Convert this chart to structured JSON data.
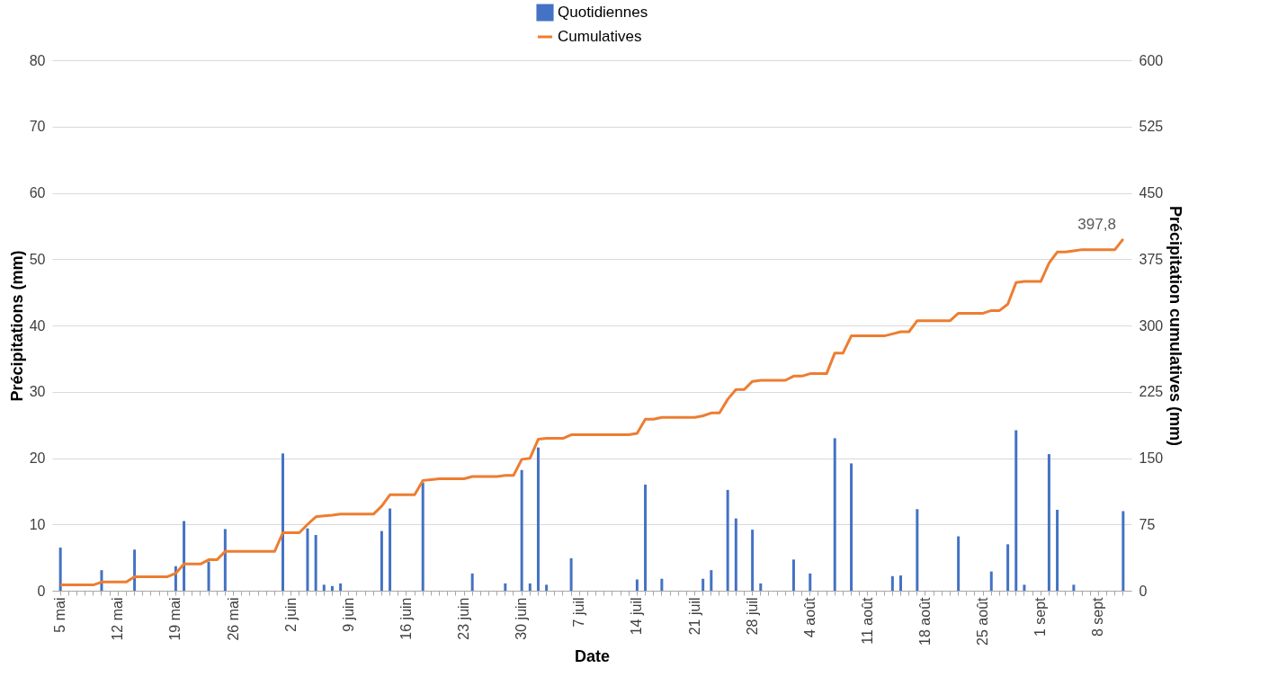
{
  "chart_data": {
    "type": "bar",
    "xlabel": "Date",
    "ylabel": "Précipitations (mm)",
    "y2label": "Précipitation cumulatives (mm)",
    "categories": [
      "5 mai",
      null,
      null,
      null,
      null,
      null,
      null,
      "12 mai",
      null,
      null,
      null,
      null,
      null,
      null,
      "19 mai",
      null,
      null,
      null,
      null,
      null,
      null,
      "26 mai",
      null,
      null,
      null,
      null,
      null,
      null,
      "2 juin",
      null,
      null,
      null,
      null,
      null,
      null,
      "9 juin",
      null,
      null,
      null,
      null,
      null,
      null,
      "16 juin",
      null,
      null,
      null,
      null,
      null,
      null,
      "23 juin",
      null,
      null,
      null,
      null,
      null,
      null,
      "30 juin",
      null,
      null,
      null,
      null,
      null,
      null,
      "7 juil",
      null,
      null,
      null,
      null,
      null,
      null,
      "14 juil",
      null,
      null,
      null,
      null,
      null,
      null,
      "21 juil",
      null,
      null,
      null,
      null,
      null,
      null,
      "28 juil",
      null,
      null,
      null,
      null,
      null,
      null,
      "4 août",
      null,
      null,
      null,
      null,
      null,
      null,
      "11 août",
      null,
      null,
      null,
      null,
      null,
      null,
      "18 août",
      null,
      null,
      null,
      null,
      null,
      null,
      "25 août",
      null,
      null,
      null,
      null,
      null,
      null,
      "1 sept",
      null,
      null,
      null,
      null,
      null,
      null,
      "8 sept",
      null,
      null,
      null
    ],
    "series": [
      {
        "name": "Quotidiennes",
        "color": "#4472c4",
        "values": [
          6.5,
          0,
          0,
          0,
          0,
          3.1,
          0,
          0,
          0,
          6.2,
          0,
          0,
          0,
          0,
          3.7,
          10.5,
          0,
          0,
          4.4,
          0,
          9.3,
          0,
          0,
          0,
          0,
          0,
          0,
          20.7,
          0,
          0,
          9.4,
          8.4,
          0.9,
          0.7,
          1.1,
          0,
          0,
          0,
          0,
          9.0,
          12.4,
          0,
          0,
          0,
          16.3,
          0,
          0,
          0,
          0,
          0,
          2.6,
          0,
          0,
          0,
          1.1,
          0,
          18.2,
          1.1,
          21.6,
          0.9,
          0,
          0,
          4.9,
          0,
          0,
          0,
          0,
          0,
          0,
          0,
          1.7,
          16.0,
          0,
          1.8,
          0,
          0,
          0,
          0,
          1.8,
          3.1,
          0,
          15.2,
          10.9,
          0,
          9.2,
          1.1,
          0,
          0,
          0,
          4.7,
          0,
          2.6,
          0,
          0,
          23.0,
          0,
          19.2,
          0,
          0,
          0,
          0,
          2.2,
          2.3,
          0,
          12.3,
          0,
          0,
          0,
          0,
          8.2,
          0,
          0,
          0,
          2.9,
          0,
          7.0,
          24.2,
          0.9,
          0,
          0,
          20.6,
          12.2,
          0,
          0.9,
          0,
          0,
          0,
          0,
          0,
          12.0
        ]
      },
      {
        "name": "Cumulatives",
        "type": "line",
        "axis": "y2",
        "color": "#ed7d31",
        "values": [
          6.5,
          6.5,
          6.5,
          6.5,
          6.5,
          9.8,
          9.8,
          9.8,
          9.8,
          15.8,
          15.8,
          15.8,
          15.8,
          15.8,
          19.6,
          30.2,
          30.2,
          30.2,
          35.0,
          35.0,
          44.4,
          44.4,
          44.4,
          44.4,
          44.4,
          44.4,
          44.4,
          65.6,
          65.6,
          65.6,
          75.0,
          83.6,
          84.6,
          85.4,
          86.6,
          86.6,
          86.6,
          86.6,
          86.6,
          95.7,
          108.5,
          108.5,
          108.5,
          108.5,
          124.7,
          125.6,
          126.6,
          126.6,
          126.6,
          126.6,
          129.2,
          129.2,
          129.2,
          129.2,
          130.4,
          130.4,
          148.6,
          149.8,
          171.3,
          172.3,
          172.3,
          172.3,
          176.4,
          176.4,
          176.4,
          176.4,
          176.4,
          176.4,
          176.4,
          176.4,
          178.0,
          194.0,
          194.0,
          196.0,
          196.0,
          196.0,
          196.0,
          196.0,
          197.8,
          201.0,
          201.0,
          216.5,
          227.6,
          227.6,
          236.8,
          238.0,
          238.0,
          238.0,
          238.0,
          242.7,
          242.7,
          245.5,
          245.5,
          245.5,
          268.8,
          268.8,
          288.2,
          288.2,
          288.2,
          288.2,
          288.2,
          290.5,
          292.9,
          292.9,
          305.4,
          305.4,
          305.4,
          305.4,
          305.4,
          313.8,
          313.8,
          313.8,
          313.8,
          316.9,
          316.9,
          324.1,
          348.6,
          349.8,
          349.8,
          349.8,
          370.6,
          383.1,
          383.1,
          384.4,
          385.8,
          385.8,
          385.8,
          385.8,
          385.8,
          397.8
        ],
        "value_labels": [
          null,
          null,
          null,
          null,
          null,
          null,
          null,
          null,
          null,
          null,
          null,
          null,
          null,
          null,
          null,
          null,
          null,
          null,
          null,
          null,
          null,
          null,
          null,
          null,
          null,
          null,
          null,
          null,
          null,
          null,
          null,
          null,
          null,
          null,
          null,
          null,
          null,
          null,
          null,
          null,
          null,
          null,
          null,
          null,
          null,
          null,
          null,
          null,
          null,
          null,
          null,
          null,
          null,
          null,
          null,
          null,
          null,
          null,
          null,
          null,
          null,
          null,
          null,
          null,
          null,
          null,
          null,
          null,
          null,
          null,
          null,
          null,
          null,
          null,
          null,
          null,
          null,
          null,
          null,
          null,
          null,
          null,
          null,
          null,
          null,
          null,
          null,
          null,
          null,
          null,
          null,
          null,
          null,
          null,
          null,
          null,
          null,
          null,
          null,
          null,
          null,
          null,
          null,
          null,
          null,
          null,
          null,
          null,
          null,
          null,
          null,
          null,
          null,
          null,
          null,
          null,
          null,
          null,
          null,
          null,
          null,
          null,
          null,
          null,
          null,
          null,
          null,
          null,
          null,
          "397,8"
        ]
      }
    ],
    "ylim": [
      0,
      80
    ],
    "yticks": [
      0,
      10,
      20,
      30,
      40,
      50,
      60,
      70,
      80
    ],
    "y2lim": [
      0,
      600
    ],
    "y2ticks": [
      0,
      75,
      150,
      225,
      300,
      375,
      450,
      525,
      600
    ],
    "grid": "y",
    "legend": "top"
  }
}
